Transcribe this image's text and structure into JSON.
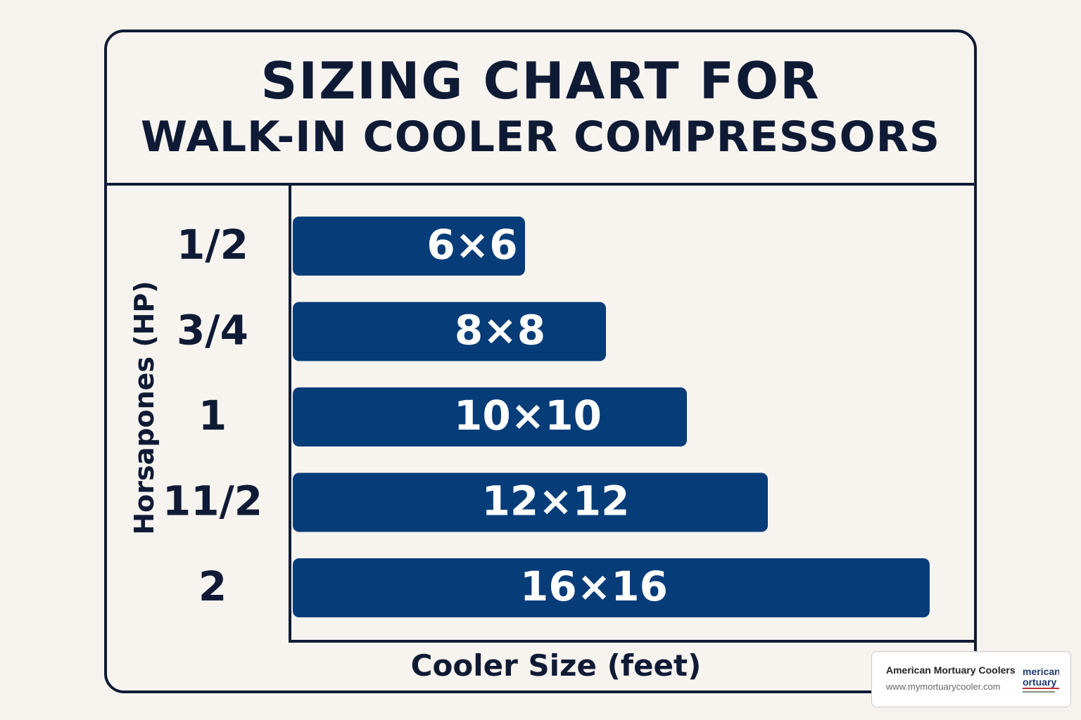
{
  "chart_data": {
    "type": "bar",
    "orientation": "horizontal",
    "title": "SIZING CHART FOR",
    "subtitle": "WALK-IN COOLER COMPRESSORS",
    "ylabel": "Horsapones (HP)",
    "xlabel": "Cooler Size (feet)",
    "categories": [
      "1/2",
      "3/4",
      "1",
      "11/2",
      "2"
    ],
    "values": [
      6,
      8,
      10,
      12,
      16
    ],
    "bar_labels": [
      "6×6",
      "8×8",
      "10×10",
      "12×12",
      "16×16"
    ],
    "grid": false,
    "bar_color": "#063c78"
  },
  "badge": {
    "name": "American Mortuary Coolers",
    "url": "www.mymortuarycooler.com",
    "logo_text_1": "merican",
    "logo_text_2": "ortuary"
  },
  "colors": {
    "ink": "#0f1b35",
    "background": "#f6f3ef"
  }
}
